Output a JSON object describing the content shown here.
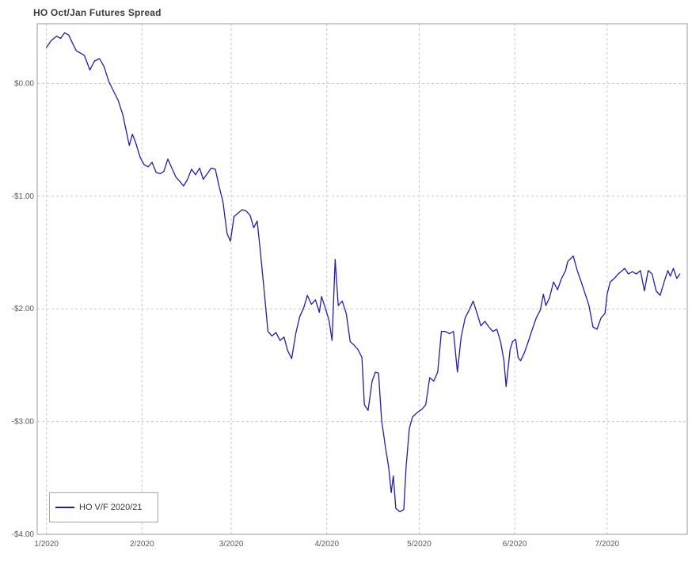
{
  "page_title": "HO Oct/Jan Futures Spread",
  "legend": {
    "label": "HO V/F 2020/21",
    "position": "bottom-left"
  },
  "colors": {
    "line": "#1f1fa6",
    "grid": "#c9c9c9",
    "border": "#9a9a9a",
    "axis_text": "#595959",
    "title_text": "#3a3a3a",
    "background": "#ffffff"
  },
  "chart_data": {
    "type": "line",
    "title": "HO Oct/Jan Futures Spread",
    "xlabel": "",
    "ylabel": "",
    "x_unit": "day of year 2020",
    "xlim": [
      -3,
      208
    ],
    "ylim": [
      -4.0,
      0.53
    ],
    "grid": "dashed",
    "legend_position": "bottom-left",
    "y_ticks": [
      {
        "value": 0,
        "label": "$0.00"
      },
      {
        "value": -1,
        "label": "-$1.00"
      },
      {
        "value": -2,
        "label": "-$2.00"
      },
      {
        "value": -3,
        "label": "-$3.00"
      },
      {
        "value": -4,
        "label": "-$4.00"
      }
    ],
    "x_ticks": [
      {
        "day": 0,
        "label": "1/2020"
      },
      {
        "day": 31,
        "label": "2/2020"
      },
      {
        "day": 60,
        "label": "3/2020"
      },
      {
        "day": 91,
        "label": "4/2020"
      },
      {
        "day": 121,
        "label": "5/2020"
      },
      {
        "day": 152,
        "label": "6/2020"
      },
      {
        "day": 182,
        "label": "7/2020"
      }
    ],
    "series": [
      {
        "name": "HO V/F 2020/21",
        "color": "#1f1fa6",
        "points": [
          [
            0,
            0.32
          ],
          [
            1.5,
            0.38
          ],
          [
            3.3,
            0.42
          ],
          [
            4.6,
            0.4
          ],
          [
            5.9,
            0.45
          ],
          [
            7.2,
            0.43
          ],
          [
            8.4,
            0.36
          ],
          [
            9.7,
            0.29
          ],
          [
            11.0,
            0.27
          ],
          [
            12.3,
            0.25
          ],
          [
            14.1,
            0.12
          ],
          [
            15.6,
            0.2
          ],
          [
            17.2,
            0.22
          ],
          [
            18.7,
            0.15
          ],
          [
            20.2,
            0.02
          ],
          [
            21.8,
            -0.07
          ],
          [
            23.3,
            -0.15
          ],
          [
            24.8,
            -0.28
          ],
          [
            25.9,
            -0.42
          ],
          [
            26.9,
            -0.55
          ],
          [
            27.9,
            -0.45
          ],
          [
            28.9,
            -0.52
          ],
          [
            30.5,
            -0.66
          ],
          [
            31.7,
            -0.72
          ],
          [
            33.0,
            -0.74
          ],
          [
            34.3,
            -0.7
          ],
          [
            35.6,
            -0.79
          ],
          [
            36.9,
            -0.8
          ],
          [
            38.1,
            -0.78
          ],
          [
            39.4,
            -0.67
          ],
          [
            40.7,
            -0.75
          ],
          [
            42.0,
            -0.83
          ],
          [
            43.3,
            -0.87
          ],
          [
            44.5,
            -0.91
          ],
          [
            45.8,
            -0.85
          ],
          [
            47.1,
            -0.76
          ],
          [
            48.4,
            -0.81
          ],
          [
            49.7,
            -0.75
          ],
          [
            50.9,
            -0.85
          ],
          [
            52.2,
            -0.8
          ],
          [
            53.5,
            -0.75
          ],
          [
            54.8,
            -0.76
          ],
          [
            56.1,
            -0.92
          ],
          [
            57.3,
            -1.05
          ],
          [
            58.6,
            -1.33
          ],
          [
            59.7,
            -1.4
          ],
          [
            60.9,
            -1.18
          ],
          [
            62.2,
            -1.15
          ],
          [
            63.5,
            -1.12
          ],
          [
            64.8,
            -1.13
          ],
          [
            66.1,
            -1.17
          ],
          [
            67.3,
            -1.28
          ],
          [
            68.4,
            -1.22
          ],
          [
            69.4,
            -1.48
          ],
          [
            70.7,
            -1.85
          ],
          [
            71.9,
            -2.2
          ],
          [
            73.2,
            -2.24
          ],
          [
            74.5,
            -2.21
          ],
          [
            75.8,
            -2.28
          ],
          [
            77.1,
            -2.25
          ],
          [
            78.3,
            -2.37
          ],
          [
            79.6,
            -2.44
          ],
          [
            80.9,
            -2.22
          ],
          [
            82.2,
            -2.07
          ],
          [
            83.5,
            -1.99
          ],
          [
            84.7,
            -1.88
          ],
          [
            86.0,
            -1.96
          ],
          [
            87.3,
            -1.92
          ],
          [
            88.6,
            -2.03
          ],
          [
            89.3,
            -1.89
          ],
          [
            90.6,
            -2.0
          ],
          [
            91.7,
            -2.1
          ],
          [
            92.7,
            -2.28
          ],
          [
            93.7,
            -1.56
          ],
          [
            94.7,
            -1.97
          ],
          [
            96.0,
            -1.93
          ],
          [
            97.3,
            -2.04
          ],
          [
            98.6,
            -2.29
          ],
          [
            99.8,
            -2.32
          ],
          [
            101.1,
            -2.36
          ],
          [
            102.4,
            -2.43
          ],
          [
            103.2,
            -2.85
          ],
          [
            104.4,
            -2.9
          ],
          [
            105.7,
            -2.64
          ],
          [
            106.8,
            -2.56
          ],
          [
            107.8,
            -2.57
          ],
          [
            108.8,
            -2.99
          ],
          [
            110.1,
            -3.24
          ],
          [
            111.1,
            -3.41
          ],
          [
            111.9,
            -3.63
          ],
          [
            112.6,
            -3.48
          ],
          [
            113.4,
            -3.77
          ],
          [
            114.7,
            -3.8
          ],
          [
            116.0,
            -3.78
          ],
          [
            116.7,
            -3.41
          ],
          [
            117.8,
            -3.06
          ],
          [
            118.8,
            -2.96
          ],
          [
            120.3,
            -2.92
          ],
          [
            121.9,
            -2.89
          ],
          [
            123.1,
            -2.85
          ],
          [
            124.4,
            -2.61
          ],
          [
            125.7,
            -2.64
          ],
          [
            127.0,
            -2.56
          ],
          [
            128.2,
            -2.2
          ],
          [
            129.5,
            -2.2
          ],
          [
            130.8,
            -2.22
          ],
          [
            132.1,
            -2.2
          ],
          [
            133.4,
            -2.56
          ],
          [
            134.6,
            -2.25
          ],
          [
            135.9,
            -2.08
          ],
          [
            137.2,
            -2.01
          ],
          [
            138.5,
            -1.93
          ],
          [
            139.8,
            -2.04
          ],
          [
            141.0,
            -2.15
          ],
          [
            142.3,
            -2.11
          ],
          [
            143.6,
            -2.16
          ],
          [
            144.9,
            -2.2
          ],
          [
            146.2,
            -2.18
          ],
          [
            147.4,
            -2.29
          ],
          [
            148.5,
            -2.46
          ],
          [
            149.2,
            -2.69
          ],
          [
            150.5,
            -2.36
          ],
          [
            151.3,
            -2.29
          ],
          [
            152.3,
            -2.27
          ],
          [
            153.1,
            -2.43
          ],
          [
            153.9,
            -2.46
          ],
          [
            155.1,
            -2.39
          ],
          [
            156.4,
            -2.29
          ],
          [
            157.7,
            -2.18
          ],
          [
            159.0,
            -2.08
          ],
          [
            160.3,
            -2.01
          ],
          [
            161.3,
            -1.87
          ],
          [
            162.1,
            -1.97
          ],
          [
            163.3,
            -1.9
          ],
          [
            164.6,
            -1.76
          ],
          [
            165.9,
            -1.83
          ],
          [
            167.2,
            -1.73
          ],
          [
            168.5,
            -1.66
          ],
          [
            169.2,
            -1.58
          ],
          [
            170.3,
            -1.55
          ],
          [
            171.0,
            -1.53
          ],
          [
            172.3,
            -1.66
          ],
          [
            173.6,
            -1.76
          ],
          [
            174.9,
            -1.87
          ],
          [
            176.1,
            -1.97
          ],
          [
            177.4,
            -2.16
          ],
          [
            178.7,
            -2.18
          ],
          [
            180.0,
            -2.08
          ],
          [
            181.3,
            -2.04
          ],
          [
            182.0,
            -1.87
          ],
          [
            183.0,
            -1.76
          ],
          [
            184.3,
            -1.73
          ],
          [
            185.6,
            -1.69
          ],
          [
            186.9,
            -1.66
          ],
          [
            187.7,
            -1.64
          ],
          [
            188.9,
            -1.69
          ],
          [
            190.2,
            -1.67
          ],
          [
            191.5,
            -1.69
          ],
          [
            192.8,
            -1.66
          ],
          [
            194.1,
            -1.84
          ],
          [
            195.3,
            -1.66
          ],
          [
            196.6,
            -1.69
          ],
          [
            197.9,
            -1.84
          ],
          [
            199.2,
            -1.88
          ],
          [
            200.5,
            -1.76
          ],
          [
            201.7,
            -1.66
          ],
          [
            202.5,
            -1.71
          ],
          [
            203.5,
            -1.64
          ],
          [
            204.6,
            -1.73
          ],
          [
            205.6,
            -1.69
          ]
        ]
      }
    ]
  }
}
